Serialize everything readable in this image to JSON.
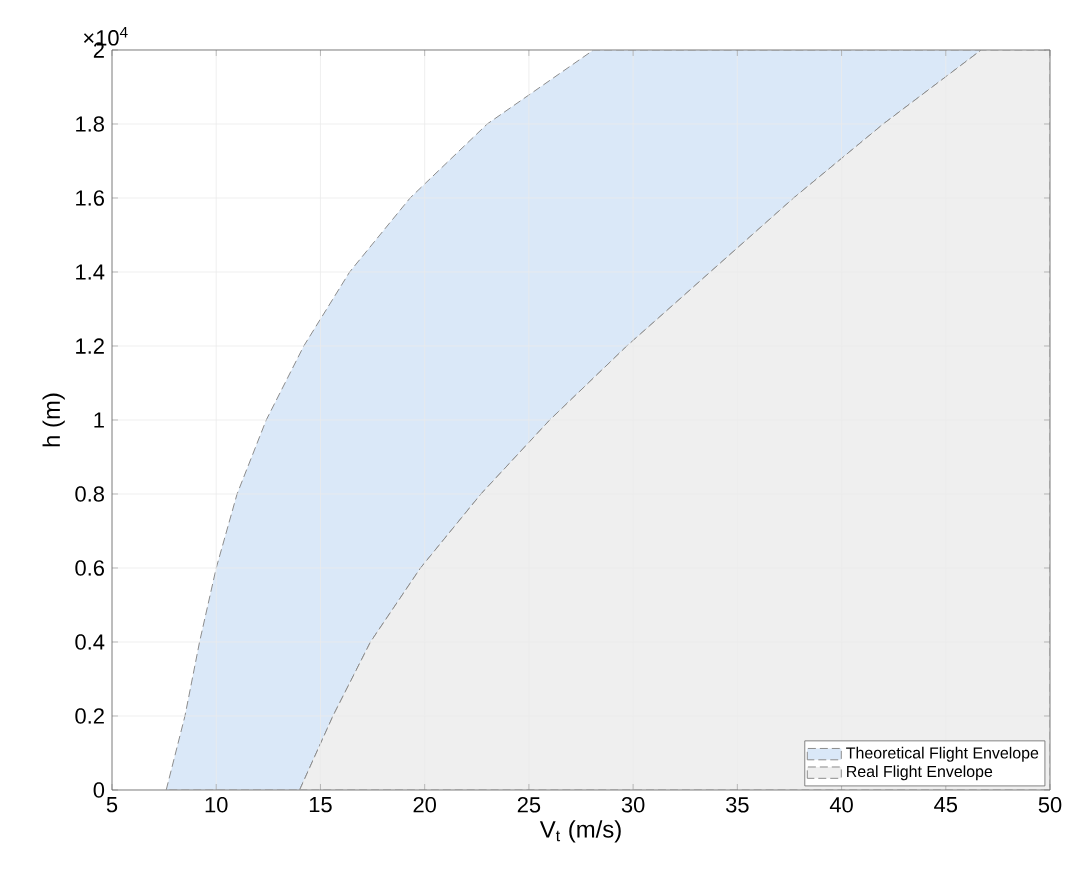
{
  "chart_data": {
    "type": "area",
    "xlabel": "V$_{t}$ (m/s)",
    "ylabel": "h (m)",
    "annotations": [
      "×10$^{4}$"
    ],
    "xlim": [
      5,
      50
    ],
    "xticks": [
      5,
      10,
      15,
      20,
      25,
      30,
      35,
      40,
      45,
      50
    ],
    "ylim": [
      0,
      2
    ],
    "yticks": [
      0,
      0.2,
      0.4,
      0.6,
      0.8,
      1,
      1.2,
      1.4,
      1.6,
      1.8,
      2
    ],
    "grid": true,
    "legend": "bottom right",
    "line_style": "dashed",
    "series": [
      {
        "name": "Theoretical Flight Envelope",
        "color": "#dae8f8",
        "x": [
          7.6,
          8.5,
          9.2,
          10.0,
          11.0,
          12.4,
          14.2,
          16.4,
          19.3,
          23.0,
          28.1,
          46.7,
          42.0,
          37.7,
          33.7,
          29.7,
          26.0,
          22.7,
          19.8,
          17.4,
          15.6,
          14.0
        ],
        "values": [
          0,
          0.2,
          0.4,
          0.6,
          0.8,
          1,
          1.2,
          1.4,
          1.6,
          1.8,
          2,
          2,
          1.8,
          1.6,
          1.4,
          1.2,
          1,
          0.8,
          0.6,
          0.4,
          0.2,
          0
        ]
      },
      {
        "name": "Real Flight Envelope",
        "color": "#efefef",
        "x": [
          14.0,
          15.6,
          17.4,
          19.8,
          22.7,
          26.0,
          29.7,
          33.7,
          37.7,
          42.0,
          46.7,
          50,
          50
        ],
        "values": [
          0,
          0.2,
          0.4,
          0.6,
          0.8,
          1,
          1.2,
          1.4,
          1.6,
          1.8,
          2,
          2,
          0
        ]
      }
    ]
  }
}
